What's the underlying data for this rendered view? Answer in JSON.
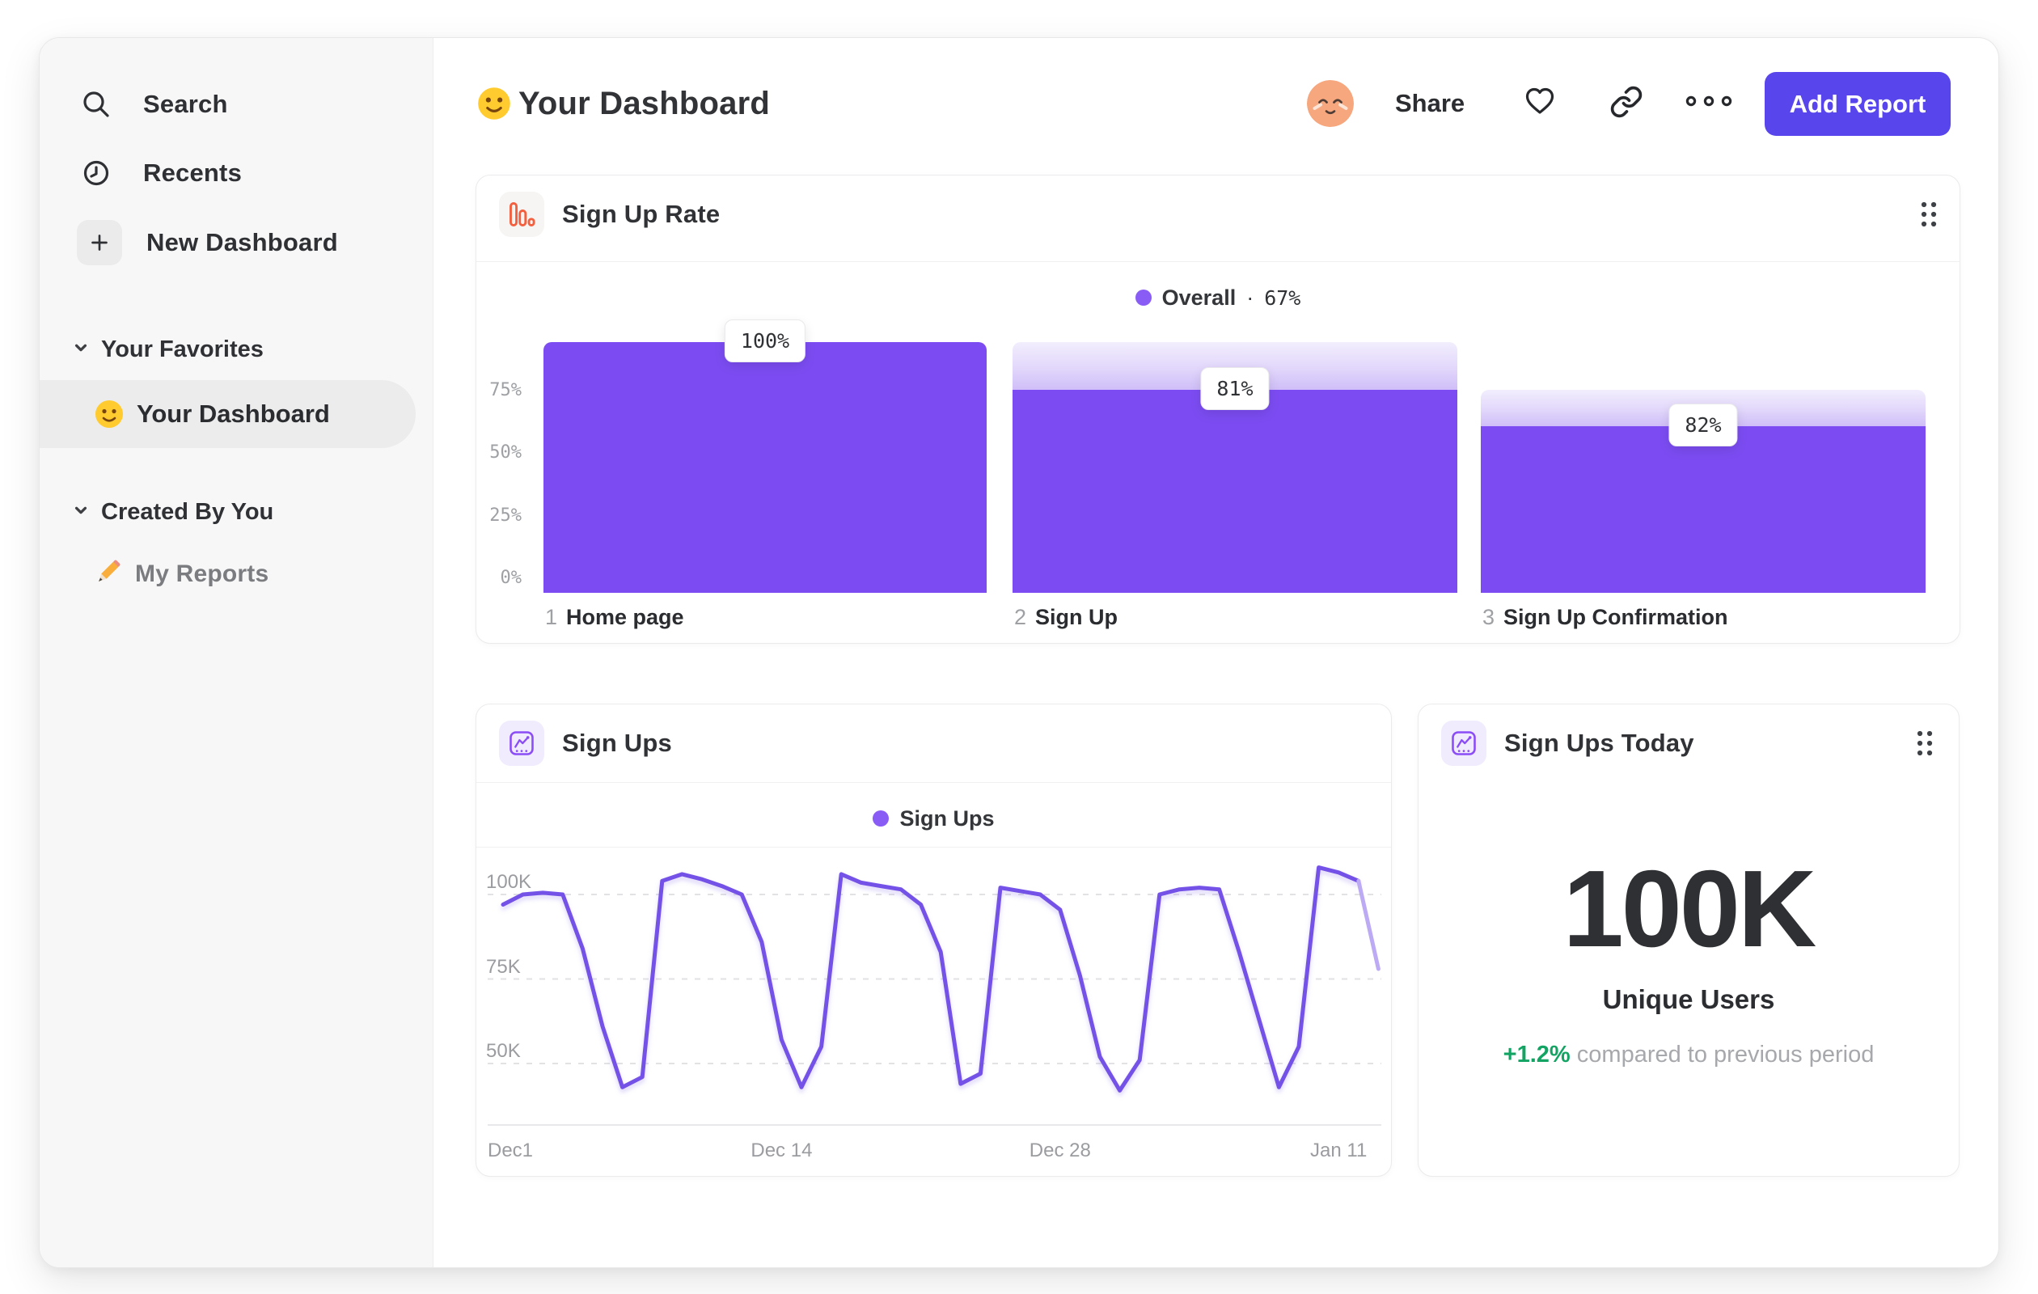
{
  "sidebar": {
    "items": [
      {
        "label": "Search",
        "icon": "search-icon"
      },
      {
        "label": "Recents",
        "icon": "clock-icon"
      },
      {
        "label": "New Dashboard",
        "icon": "plus-icon"
      }
    ],
    "sections": [
      {
        "title": "Your Favorites",
        "items": [
          {
            "label": "Your Dashboard",
            "icon": "smiley-emoji-icon",
            "selected": true
          }
        ]
      },
      {
        "title": "Created By You",
        "items": [
          {
            "label": "My Reports",
            "icon": "pencil-emoji-icon",
            "selected": false
          }
        ]
      }
    ]
  },
  "header": {
    "title": "Your Dashboard",
    "share_label": "Share",
    "add_report_label": "Add Report"
  },
  "colors": {
    "accent_purple": "#7C4CF2",
    "button_purple": "#5846EC",
    "legend_dot": "#8A5CF6",
    "line_purple": "#7452E8",
    "line_faded": "#BCAAF4",
    "positive_green": "#13A463",
    "funnel_icon_orange": "#F2603F"
  },
  "chart_data": [
    {
      "id": "signup_rate",
      "type": "bar",
      "variant": "funnel",
      "title": "Sign Up Rate",
      "legend": {
        "label": "Overall",
        "separator": "·",
        "value": "67%"
      },
      "ylim": [
        0,
        100
      ],
      "grid": false,
      "yticks": [
        {
          "label": "75%",
          "value": 75
        },
        {
          "label": "50%",
          "value": 50
        },
        {
          "label": "25%",
          "value": 25
        },
        {
          "label": "0%",
          "value": 0
        }
      ],
      "steps": [
        {
          "num": "1",
          "label": "Home page",
          "value_label": "100%",
          "step_conversion_pct": 100,
          "cumulative_pct": 100,
          "ghost_pct": 100
        },
        {
          "num": "2",
          "label": "Sign Up",
          "value_label": "81%",
          "step_conversion_pct": 81,
          "cumulative_pct": 81,
          "ghost_pct": 100
        },
        {
          "num": "3",
          "label": "Sign Up Confirmation",
          "value_label": "82%",
          "step_conversion_pct": 82,
          "cumulative_pct": 66.4,
          "ghost_pct": 81
        }
      ]
    },
    {
      "id": "signups",
      "type": "line",
      "title": "Sign Ups",
      "legend": {
        "label": "Sign Ups"
      },
      "grid": "dashed-horizontal",
      "yticks": [
        {
          "label": "100K",
          "value": 100
        },
        {
          "label": "75K",
          "value": 75
        },
        {
          "label": "50K",
          "value": 50
        }
      ],
      "x_ticks": [
        {
          "label": "Dec1",
          "day": 0,
          "align": "left"
        },
        {
          "label": "Dec 14",
          "day": 14,
          "align": "center"
        },
        {
          "label": "Dec 28",
          "day": 28,
          "align": "center"
        },
        {
          "label": "Jan 11",
          "day": 42,
          "align": "center"
        }
      ],
      "unit": "K",
      "values_k": [
        97,
        100,
        100.5,
        100,
        84,
        61,
        43,
        46,
        104,
        106,
        104.5,
        102.5,
        100,
        86,
        57,
        43,
        55,
        106,
        103.5,
        102.5,
        101.5,
        97,
        83,
        44,
        47,
        102,
        101,
        100,
        95.5,
        76,
        52,
        42,
        51,
        100,
        101.5,
        102,
        101.5,
        83,
        63,
        43,
        55,
        108,
        106.5,
        104,
        78
      ],
      "faded_from_index": 43
    },
    {
      "id": "signups_today",
      "type": "big_number",
      "title": "Sign Ups Today",
      "value": "100K",
      "label": "Unique Users",
      "delta": "+1.2%",
      "delta_note": "compared to previous period"
    }
  ]
}
